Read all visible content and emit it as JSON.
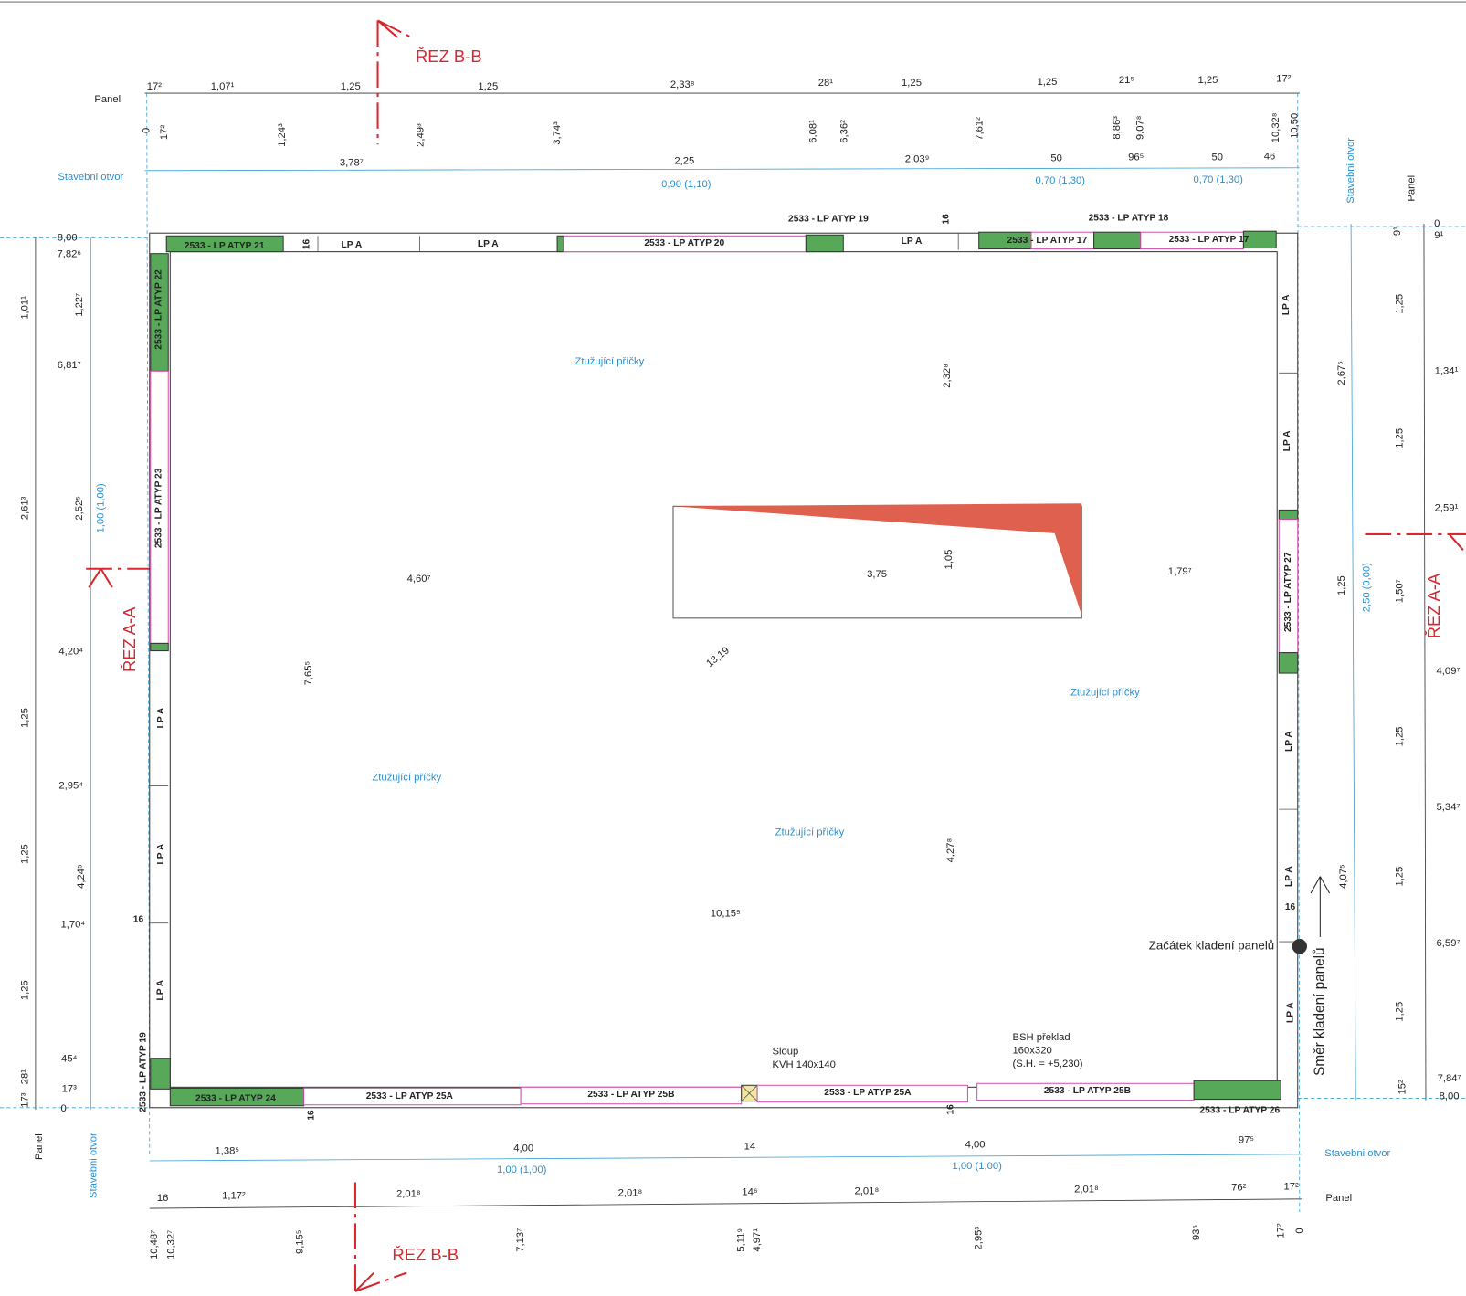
{
  "section_labels": [
    "ŘEZ B-B",
    "ŘEZ B-B",
    "ŘEZ A-A",
    "ŘEZ A-A"
  ],
  "side_labels": [
    "Panel",
    "Stavebni otvor",
    "Stavebni otvor",
    "Panel",
    "Panel",
    "Stavebni otvor",
    "Stavebni otvor",
    "Panel"
  ],
  "top_panel_dims": [
    "17²",
    "1,07¹",
    "1,25",
    "1,25",
    "2,33⁸",
    "28¹",
    "1,25",
    "1,25",
    "21⁵",
    "1,25",
    "17²"
  ],
  "top_panel_marks": [
    "0",
    "17²",
    "1,24³",
    "2,49³",
    "3,74³",
    "6,08¹",
    "6,36²",
    "7,61²",
    "8,86³",
    "9,07⁸",
    "10,32⁸",
    "10,50"
  ],
  "top_opening_dims": [
    "3,78⁷",
    "2,25",
    "2,03⁹",
    "50",
    "96⁵",
    "50",
    "46"
  ],
  "top_opening_sizes": [
    "0,90 (1,10)",
    "0,70 (1,30)",
    "0,70 (1,30)"
  ],
  "panels": [
    "2533 - LP ATYP 19",
    "16",
    "2533 - LP ATYP 18",
    "2533 - LP ATYP 21",
    "16",
    "LP A",
    "LP A",
    "2533 - LP ATYP 20",
    "LP A",
    "2533 - LP ATYP 17",
    "2533 - LP ATYP 17",
    "2533 - LP ATYP 22",
    "2533 - LP ATYP 23",
    "LP A",
    "LP A",
    "LP A",
    "2533 - LP ATYP 19",
    "16",
    "LP A",
    "LP A",
    "2533 - LP ATYP 27",
    "LP A",
    "LP A",
    "LP A",
    "16",
    "2533 - LP ATYP 24",
    "16",
    "2533 - LP ATYP 25A",
    "2533 - LP ATYP 25B",
    "2533 - LP ATYP 25A",
    "16",
    "2533 - LP ATYP 25B",
    "2533 - LP ATYP 26"
  ],
  "left_dims": [
    "1,01¹",
    "2,61³",
    "1,25",
    "1,25",
    "1,25",
    "28¹",
    "17³",
    "8,00",
    "7,82⁶",
    "6,81⁷",
    "4,20⁴",
    "2,95⁴",
    "1,70⁴",
    "45⁴",
    "17³",
    "0",
    "1,22⁷",
    "2,52⁵",
    "4,24⁵"
  ],
  "left_opening_size": "1,00 (1,00)",
  "right_dims": [
    "0",
    "9¹",
    "9¹",
    "1,25",
    "1,34¹",
    "1,25",
    "2,59¹",
    "1,50⁷",
    "4,09⁷",
    "1,25",
    "5,34⁷",
    "1,25",
    "6,59⁷",
    "1,25",
    "15²",
    "7,84⁷",
    "8,00",
    "2,67⁵",
    "1,25",
    "4,07⁵"
  ],
  "right_opening_size": "2,50 (0,00)",
  "bottom_opening_dims": [
    "1,38⁵",
    "4,00",
    "14",
    "4,00",
    "97⁵"
  ],
  "bottom_opening_sizes": [
    "1,00 (1,00)",
    "1,00 (1,00)"
  ],
  "bottom_panel_dims": [
    "16",
    "1,17²",
    "2,01⁸",
    "2,01⁸",
    "14⁶",
    "2,01⁸",
    "2,01⁸",
    "76²",
    "17²"
  ],
  "bottom_panel_marks": [
    "10,48⁷",
    "10,32⁷",
    "9,15⁵",
    "7,13⁷",
    "5,11⁹",
    "4,97¹",
    "2,95³",
    "93⁵",
    "17²",
    "0"
  ],
  "interior_dims": [
    "4,60⁷",
    "3,75",
    "1,79⁷",
    "1,05",
    "2,32⁸",
    "7,65⁵",
    "4,27⁸",
    "10,15⁵",
    "13,19"
  ],
  "brace_notes": [
    "Ztužující příčky",
    "Ztužující příčky",
    "Ztužující příčky",
    "Ztužující příčky"
  ],
  "notes": [
    "Sloup",
    "KVH 140x140",
    "BSH překlad",
    "160x320",
    "(S.H. = +5,230)",
    "Začátek kladení panelů",
    "Směr kladení panelů"
  ]
}
